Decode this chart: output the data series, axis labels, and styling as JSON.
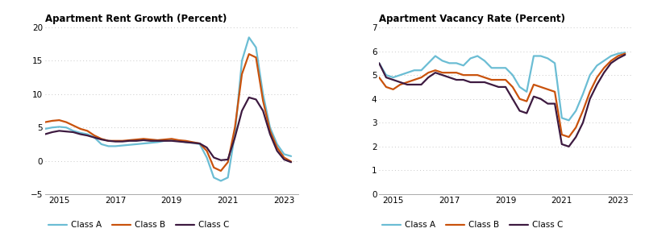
{
  "rent_growth": {
    "title": "Apartment Rent Growth (Percent)",
    "xlim": [
      2014.5,
      2023.5
    ],
    "ylim": [
      -5,
      20
    ],
    "yticks": [
      -5,
      0,
      5,
      10,
      15,
      20
    ],
    "xticks": [
      2015,
      2017,
      2019,
      2021,
      2023
    ],
    "class_a": [
      [
        2014.5,
        4.8
      ],
      [
        2014.75,
        5.0
      ],
      [
        2015.0,
        5.1
      ],
      [
        2015.25,
        5.0
      ],
      [
        2015.5,
        4.5
      ],
      [
        2015.75,
        4.2
      ],
      [
        2016.0,
        4.0
      ],
      [
        2016.25,
        3.5
      ],
      [
        2016.5,
        2.5
      ],
      [
        2016.75,
        2.2
      ],
      [
        2017.0,
        2.2
      ],
      [
        2017.25,
        2.3
      ],
      [
        2017.5,
        2.4
      ],
      [
        2017.75,
        2.5
      ],
      [
        2018.0,
        2.6
      ],
      [
        2018.25,
        2.7
      ],
      [
        2018.5,
        2.8
      ],
      [
        2018.75,
        3.0
      ],
      [
        2019.0,
        3.2
      ],
      [
        2019.25,
        3.0
      ],
      [
        2019.5,
        2.8
      ],
      [
        2019.75,
        2.7
      ],
      [
        2020.0,
        2.5
      ],
      [
        2020.25,
        0.5
      ],
      [
        2020.5,
        -2.5
      ],
      [
        2020.75,
        -3.0
      ],
      [
        2021.0,
        -2.5
      ],
      [
        2021.25,
        4.0
      ],
      [
        2021.5,
        15.0
      ],
      [
        2021.75,
        18.5
      ],
      [
        2022.0,
        17.0
      ],
      [
        2022.25,
        10.0
      ],
      [
        2022.5,
        5.0
      ],
      [
        2022.75,
        2.5
      ],
      [
        2023.0,
        1.0
      ],
      [
        2023.25,
        0.7
      ]
    ],
    "class_b": [
      [
        2014.5,
        5.8
      ],
      [
        2014.75,
        6.0
      ],
      [
        2015.0,
        6.1
      ],
      [
        2015.25,
        5.8
      ],
      [
        2015.5,
        5.3
      ],
      [
        2015.75,
        4.8
      ],
      [
        2016.0,
        4.5
      ],
      [
        2016.25,
        3.8
      ],
      [
        2016.5,
        3.3
      ],
      [
        2016.75,
        3.0
      ],
      [
        2017.0,
        3.0
      ],
      [
        2017.25,
        3.0
      ],
      [
        2017.5,
        3.1
      ],
      [
        2017.75,
        3.2
      ],
      [
        2018.0,
        3.3
      ],
      [
        2018.25,
        3.2
      ],
      [
        2018.5,
        3.1
      ],
      [
        2018.75,
        3.2
      ],
      [
        2019.0,
        3.3
      ],
      [
        2019.25,
        3.1
      ],
      [
        2019.5,
        3.0
      ],
      [
        2019.75,
        2.8
      ],
      [
        2020.0,
        2.6
      ],
      [
        2020.25,
        1.5
      ],
      [
        2020.5,
        -1.0
      ],
      [
        2020.75,
        -1.5
      ],
      [
        2021.0,
        -0.2
      ],
      [
        2021.25,
        5.0
      ],
      [
        2021.5,
        13.0
      ],
      [
        2021.75,
        16.0
      ],
      [
        2022.0,
        15.5
      ],
      [
        2022.25,
        9.0
      ],
      [
        2022.5,
        4.5
      ],
      [
        2022.75,
        2.0
      ],
      [
        2023.0,
        0.5
      ],
      [
        2023.25,
        -0.1
      ]
    ],
    "class_c": [
      [
        2014.5,
        4.0
      ],
      [
        2014.75,
        4.3
      ],
      [
        2015.0,
        4.5
      ],
      [
        2015.25,
        4.4
      ],
      [
        2015.5,
        4.3
      ],
      [
        2015.75,
        4.0
      ],
      [
        2016.0,
        3.8
      ],
      [
        2016.25,
        3.5
      ],
      [
        2016.5,
        3.2
      ],
      [
        2016.75,
        3.0
      ],
      [
        2017.0,
        2.9
      ],
      [
        2017.25,
        2.9
      ],
      [
        2017.5,
        3.0
      ],
      [
        2017.75,
        3.0
      ],
      [
        2018.0,
        3.1
      ],
      [
        2018.25,
        3.0
      ],
      [
        2018.5,
        3.0
      ],
      [
        2018.75,
        3.0
      ],
      [
        2019.0,
        3.0
      ],
      [
        2019.25,
        2.9
      ],
      [
        2019.5,
        2.8
      ],
      [
        2019.75,
        2.7
      ],
      [
        2020.0,
        2.6
      ],
      [
        2020.25,
        2.0
      ],
      [
        2020.5,
        0.5
      ],
      [
        2020.75,
        0.1
      ],
      [
        2021.0,
        0.2
      ],
      [
        2021.25,
        3.5
      ],
      [
        2021.5,
        7.5
      ],
      [
        2021.75,
        9.5
      ],
      [
        2022.0,
        9.2
      ],
      [
        2022.25,
        7.5
      ],
      [
        2022.5,
        4.0
      ],
      [
        2022.75,
        1.5
      ],
      [
        2023.0,
        0.2
      ],
      [
        2023.25,
        -0.2
      ]
    ],
    "color_a": "#6BBDD4",
    "color_b": "#C9520C",
    "color_c": "#3D1A40"
  },
  "vacancy_rate": {
    "title": "Apartment Vacancy Rate (Percent)",
    "xlim": [
      2014.5,
      2023.5
    ],
    "ylim": [
      0,
      7
    ],
    "yticks": [
      0,
      1,
      2,
      3,
      4,
      5,
      6,
      7
    ],
    "xticks": [
      2015,
      2017,
      2019,
      2021,
      2023
    ],
    "class_a": [
      [
        2014.5,
        5.5
      ],
      [
        2014.75,
        5.0
      ],
      [
        2015.0,
        4.9
      ],
      [
        2015.25,
        5.0
      ],
      [
        2015.5,
        5.1
      ],
      [
        2015.75,
        5.2
      ],
      [
        2016.0,
        5.2
      ],
      [
        2016.25,
        5.5
      ],
      [
        2016.5,
        5.8
      ],
      [
        2016.75,
        5.6
      ],
      [
        2017.0,
        5.5
      ],
      [
        2017.25,
        5.5
      ],
      [
        2017.5,
        5.4
      ],
      [
        2017.75,
        5.7
      ],
      [
        2018.0,
        5.8
      ],
      [
        2018.25,
        5.6
      ],
      [
        2018.5,
        5.3
      ],
      [
        2018.75,
        5.3
      ],
      [
        2019.0,
        5.3
      ],
      [
        2019.25,
        5.0
      ],
      [
        2019.5,
        4.5
      ],
      [
        2019.75,
        4.3
      ],
      [
        2020.0,
        5.8
      ],
      [
        2020.25,
        5.8
      ],
      [
        2020.5,
        5.7
      ],
      [
        2020.75,
        5.5
      ],
      [
        2021.0,
        3.2
      ],
      [
        2021.25,
        3.1
      ],
      [
        2021.5,
        3.5
      ],
      [
        2021.75,
        4.2
      ],
      [
        2022.0,
        5.0
      ],
      [
        2022.25,
        5.4
      ],
      [
        2022.5,
        5.6
      ],
      [
        2022.75,
        5.8
      ],
      [
        2023.0,
        5.9
      ],
      [
        2023.25,
        5.95
      ]
    ],
    "class_b": [
      [
        2014.5,
        4.9
      ],
      [
        2014.75,
        4.5
      ],
      [
        2015.0,
        4.4
      ],
      [
        2015.25,
        4.6
      ],
      [
        2015.5,
        4.7
      ],
      [
        2015.75,
        4.8
      ],
      [
        2016.0,
        4.9
      ],
      [
        2016.25,
        5.1
      ],
      [
        2016.5,
        5.2
      ],
      [
        2016.75,
        5.1
      ],
      [
        2017.0,
        5.1
      ],
      [
        2017.25,
        5.1
      ],
      [
        2017.5,
        5.0
      ],
      [
        2017.75,
        5.0
      ],
      [
        2018.0,
        5.0
      ],
      [
        2018.25,
        4.9
      ],
      [
        2018.5,
        4.8
      ],
      [
        2018.75,
        4.8
      ],
      [
        2019.0,
        4.8
      ],
      [
        2019.25,
        4.5
      ],
      [
        2019.5,
        4.0
      ],
      [
        2019.75,
        3.9
      ],
      [
        2020.0,
        4.6
      ],
      [
        2020.25,
        4.5
      ],
      [
        2020.5,
        4.4
      ],
      [
        2020.75,
        4.3
      ],
      [
        2021.0,
        2.5
      ],
      [
        2021.25,
        2.4
      ],
      [
        2021.5,
        2.8
      ],
      [
        2021.75,
        3.5
      ],
      [
        2022.0,
        4.3
      ],
      [
        2022.25,
        4.9
      ],
      [
        2022.5,
        5.3
      ],
      [
        2022.75,
        5.6
      ],
      [
        2023.0,
        5.8
      ],
      [
        2023.25,
        5.9
      ]
    ],
    "class_c": [
      [
        2014.5,
        5.5
      ],
      [
        2014.75,
        4.9
      ],
      [
        2015.0,
        4.8
      ],
      [
        2015.25,
        4.7
      ],
      [
        2015.5,
        4.6
      ],
      [
        2015.75,
        4.6
      ],
      [
        2016.0,
        4.6
      ],
      [
        2016.25,
        4.9
      ],
      [
        2016.5,
        5.1
      ],
      [
        2016.75,
        5.0
      ],
      [
        2017.0,
        4.9
      ],
      [
        2017.25,
        4.8
      ],
      [
        2017.5,
        4.8
      ],
      [
        2017.75,
        4.7
      ],
      [
        2018.0,
        4.7
      ],
      [
        2018.25,
        4.7
      ],
      [
        2018.5,
        4.6
      ],
      [
        2018.75,
        4.5
      ],
      [
        2019.0,
        4.5
      ],
      [
        2019.25,
        4.0
      ],
      [
        2019.5,
        3.5
      ],
      [
        2019.75,
        3.4
      ],
      [
        2020.0,
        4.1
      ],
      [
        2020.25,
        4.0
      ],
      [
        2020.5,
        3.8
      ],
      [
        2020.75,
        3.8
      ],
      [
        2021.0,
        2.1
      ],
      [
        2021.25,
        2.0
      ],
      [
        2021.5,
        2.4
      ],
      [
        2021.75,
        3.0
      ],
      [
        2022.0,
        4.0
      ],
      [
        2022.25,
        4.6
      ],
      [
        2022.5,
        5.1
      ],
      [
        2022.75,
        5.5
      ],
      [
        2023.0,
        5.7
      ],
      [
        2023.25,
        5.85
      ]
    ],
    "color_a": "#6BBDD4",
    "color_b": "#C9520C",
    "color_c": "#3D1A40"
  },
  "legend_labels": [
    "Class A",
    "Class B",
    "Class C"
  ],
  "background_color": "#FFFFFF",
  "grid_color": "#C8C8C8",
  "line_width": 1.6
}
